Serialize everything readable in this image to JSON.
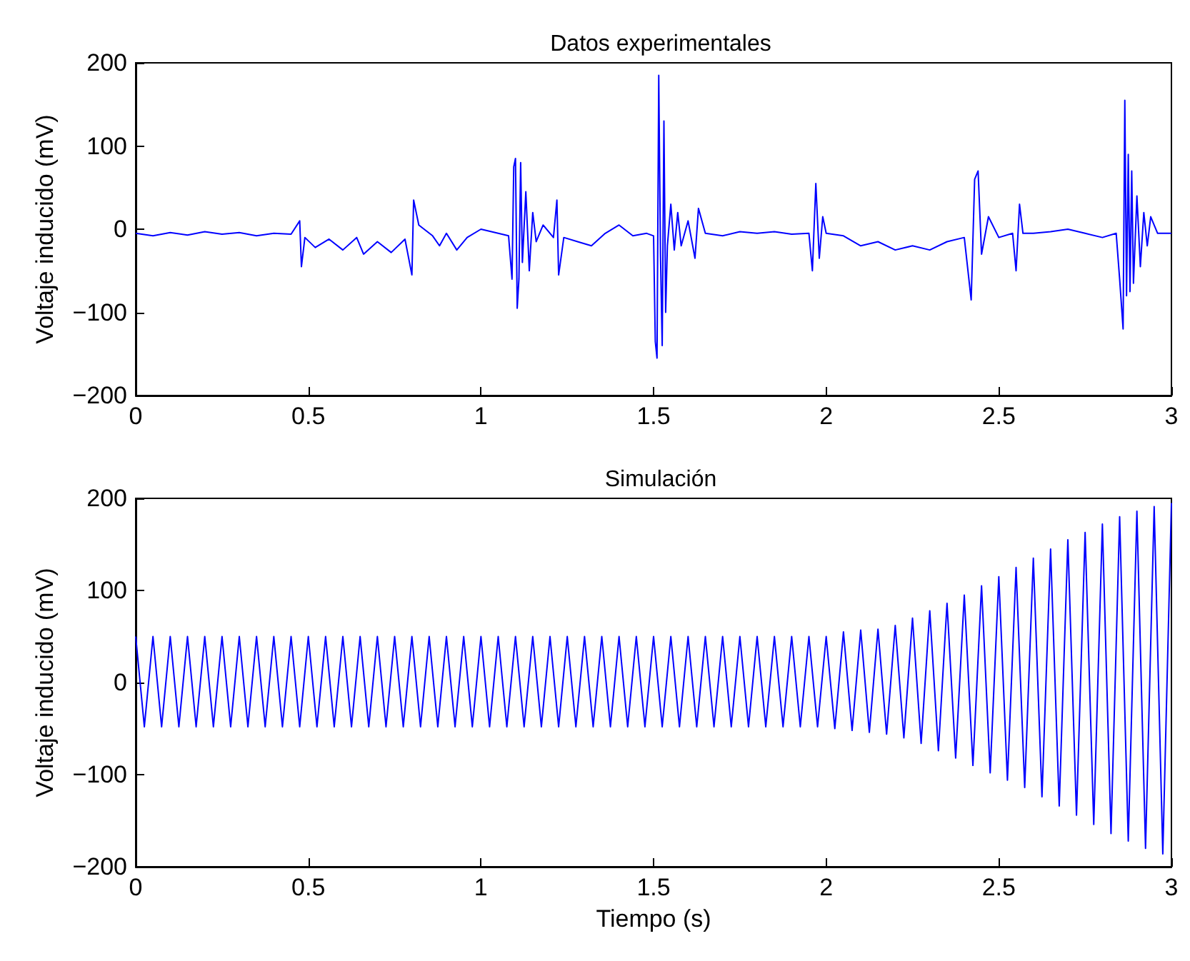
{
  "chart_data": [
    {
      "type": "line",
      "title": "Datos experimentales",
      "ylabel": "Voltaje inducido (mV)",
      "xlim": [
        0,
        3
      ],
      "xticks": [
        0,
        0.5,
        1,
        1.5,
        2,
        2.5,
        3
      ],
      "ylim": [
        -200,
        200
      ],
      "yticks": [
        -200,
        -100,
        0,
        100,
        200
      ],
      "grid": false,
      "series": [
        {
          "color": "#0000ff",
          "x": [
            0,
            0.05,
            0.1,
            0.15,
            0.2,
            0.25,
            0.3,
            0.35,
            0.4,
            0.45,
            0.475,
            0.48,
            0.49,
            0.52,
            0.56,
            0.6,
            0.64,
            0.66,
            0.7,
            0.74,
            0.78,
            0.8,
            0.805,
            0.82,
            0.86,
            0.88,
            0.9,
            0.93,
            0.96,
            1.0,
            1.05,
            1.08,
            1.09,
            1.095,
            1.1,
            1.105,
            1.11,
            1.115,
            1.12,
            1.13,
            1.14,
            1.15,
            1.16,
            1.18,
            1.21,
            1.22,
            1.225,
            1.24,
            1.28,
            1.32,
            1.36,
            1.4,
            1.44,
            1.48,
            1.5,
            1.505,
            1.51,
            1.515,
            1.52,
            1.525,
            1.53,
            1.535,
            1.54,
            1.55,
            1.56,
            1.57,
            1.58,
            1.6,
            1.62,
            1.63,
            1.65,
            1.7,
            1.75,
            1.8,
            1.85,
            1.9,
            1.95,
            1.96,
            1.97,
            1.98,
            1.99,
            2.0,
            2.05,
            2.1,
            2.15,
            2.2,
            2.25,
            2.3,
            2.35,
            2.4,
            2.42,
            2.43,
            2.44,
            2.45,
            2.47,
            2.5,
            2.54,
            2.55,
            2.56,
            2.57,
            2.6,
            2.65,
            2.7,
            2.75,
            2.8,
            2.84,
            2.85,
            2.86,
            2.865,
            2.87,
            2.875,
            2.88,
            2.885,
            2.89,
            2.9,
            2.91,
            2.92,
            2.93,
            2.94,
            2.96,
            3.0
          ],
          "values": [
            -5,
            -8,
            -4,
            -7,
            -3,
            -6,
            -4,
            -8,
            -5,
            -6,
            10,
            -45,
            -10,
            -22,
            -12,
            -25,
            -10,
            -30,
            -15,
            -28,
            -12,
            -55,
            35,
            5,
            -8,
            -20,
            -5,
            -25,
            -10,
            0,
            -5,
            -8,
            -60,
            75,
            85,
            -95,
            -60,
            80,
            -40,
            45,
            -50,
            20,
            -15,
            5,
            -10,
            35,
            -55,
            -10,
            -15,
            -20,
            -5,
            5,
            -8,
            -5,
            -8,
            -135,
            -155,
            185,
            -30,
            -140,
            130,
            -100,
            -20,
            30,
            -25,
            20,
            -20,
            10,
            -35,
            25,
            -5,
            -8,
            -3,
            -5,
            -3,
            -6,
            -5,
            -50,
            55,
            -35,
            15,
            -5,
            -8,
            -20,
            -15,
            -25,
            -20,
            -25,
            -15,
            -10,
            -85,
            60,
            70,
            -30,
            15,
            -10,
            -5,
            -50,
            30,
            -5,
            -5,
            -3,
            0,
            -5,
            -10,
            -5,
            -60,
            -120,
            155,
            -80,
            90,
            -75,
            70,
            -65,
            40,
            -45,
            20,
            -20,
            15,
            -5,
            -5
          ]
        }
      ]
    },
    {
      "type": "line",
      "title": "Simulación",
      "xlabel": "Tiempo (s)",
      "ylabel": "Voltaje inducido (mV)",
      "xlim": [
        0,
        3
      ],
      "xticks": [
        0,
        0.5,
        1,
        1.5,
        2,
        2.5,
        3
      ],
      "ylim": [
        -200,
        200
      ],
      "yticks": [
        -200,
        -100,
        0,
        100,
        200
      ],
      "grid": false,
      "series": [
        {
          "color": "#0000ff",
          "x": [
            0,
            0.025,
            0.05,
            0.075,
            0.1,
            0.125,
            0.15,
            0.175,
            0.2,
            0.225,
            0.25,
            0.275,
            0.3,
            0.325,
            0.35,
            0.375,
            0.4,
            0.425,
            0.45,
            0.475,
            0.5,
            0.525,
            0.55,
            0.575,
            0.6,
            0.625,
            0.65,
            0.675,
            0.7,
            0.725,
            0.75,
            0.775,
            0.8,
            0.825,
            0.85,
            0.875,
            0.9,
            0.925,
            0.95,
            0.975,
            1,
            1.025,
            1.05,
            1.075,
            1.1,
            1.125,
            1.15,
            1.175,
            1.2,
            1.225,
            1.25,
            1.275,
            1.3,
            1.325,
            1.35,
            1.375,
            1.4,
            1.425,
            1.45,
            1.475,
            1.5,
            1.525,
            1.55,
            1.575,
            1.6,
            1.625,
            1.65,
            1.675,
            1.7,
            1.725,
            1.75,
            1.775,
            1.8,
            1.825,
            1.85,
            1.875,
            1.9,
            1.925,
            1.95,
            1.975,
            2,
            2.025,
            2.05,
            2.075,
            2.1,
            2.125,
            2.15,
            2.175,
            2.2,
            2.225,
            2.25,
            2.275,
            2.3,
            2.325,
            2.35,
            2.375,
            2.4,
            2.425,
            2.45,
            2.475,
            2.5,
            2.525,
            2.55,
            2.575,
            2.6,
            2.625,
            2.65,
            2.675,
            2.7,
            2.725,
            2.75,
            2.775,
            2.8,
            2.825,
            2.85,
            2.875,
            2.9,
            2.925,
            2.95,
            2.975,
            3
          ],
          "values": [
            50,
            -48,
            50,
            -48,
            50,
            -48,
            50,
            -48,
            50,
            -48,
            50,
            -48,
            50,
            -48,
            50,
            -48,
            50,
            -48,
            50,
            -48,
            50,
            -48,
            50,
            -48,
            50,
            -48,
            50,
            -48,
            50,
            -48,
            50,
            -48,
            50,
            -48,
            50,
            -48,
            50,
            -48,
            50,
            -48,
            50,
            -48,
            50,
            -48,
            50,
            -48,
            50,
            -48,
            50,
            -48,
            50,
            -48,
            50,
            -48,
            50,
            -48,
            50,
            -48,
            50,
            -48,
            50,
            -48,
            50,
            -48,
            50,
            -48,
            50,
            -48,
            50,
            -48,
            50,
            -48,
            50,
            -48,
            50,
            -48,
            50,
            -48,
            50,
            -48,
            50,
            -50,
            55,
            -52,
            57,
            -54,
            58,
            -56,
            62,
            -60,
            70,
            -66,
            78,
            -74,
            86,
            -82,
            95,
            -90,
            105,
            -98,
            115,
            -106,
            125,
            -114,
            135,
            -124,
            145,
            -134,
            155,
            -144,
            163,
            -154,
            172,
            -164,
            180,
            -172,
            186,
            -180,
            191,
            -186,
            195
          ]
        }
      ]
    }
  ]
}
